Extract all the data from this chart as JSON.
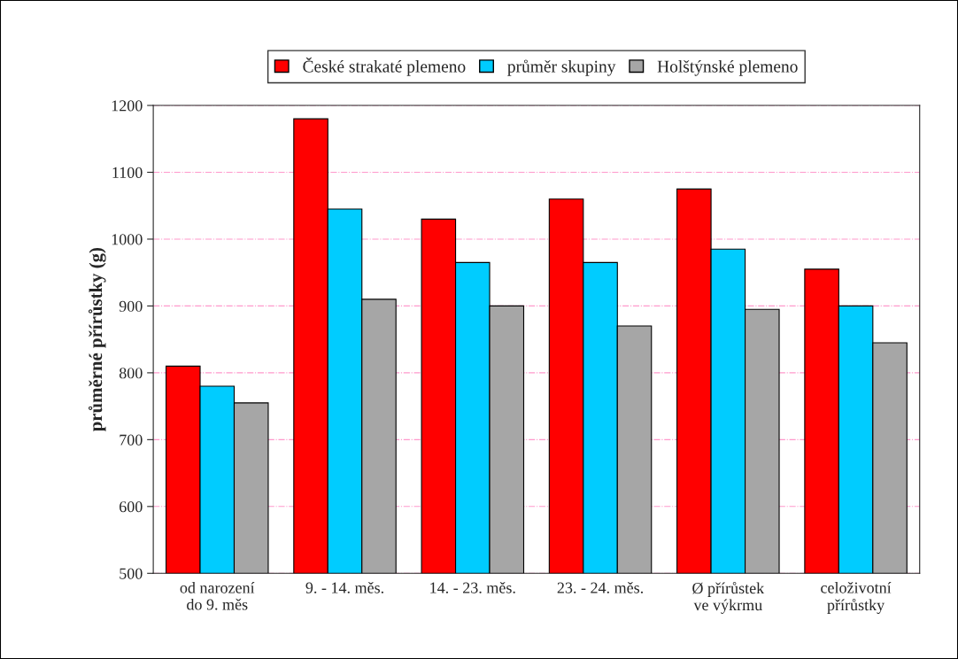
{
  "chart_data": {
    "type": "bar",
    "ylabel": "průměrné přírůstky (g)",
    "categories": [
      "od narození\ndo 9. měs",
      "9. - 14. měs.",
      "14. - 23. měs.",
      "23. - 24. měs.",
      "Ø přírůstek\nve výkrmu",
      "celoživotní\npřírůstky"
    ],
    "series": [
      {
        "name": "České strakaté plemeno",
        "color": "#ff0000",
        "values": [
          810,
          1180,
          1030,
          1060,
          1075,
          955
        ]
      },
      {
        "name": "průměr skupiny",
        "color": "#00ccff",
        "values": [
          780,
          1045,
          965,
          965,
          985,
          900
        ]
      },
      {
        "name": "Holštýnské plemeno",
        "color": "#a6a6a6",
        "values": [
          755,
          910,
          900,
          870,
          895,
          845
        ]
      }
    ],
    "ylim": [
      500,
      1200
    ],
    "yticks": [
      500,
      600,
      700,
      800,
      900,
      1000,
      1100,
      1200
    ],
    "grid": "y",
    "legend": "top"
  }
}
